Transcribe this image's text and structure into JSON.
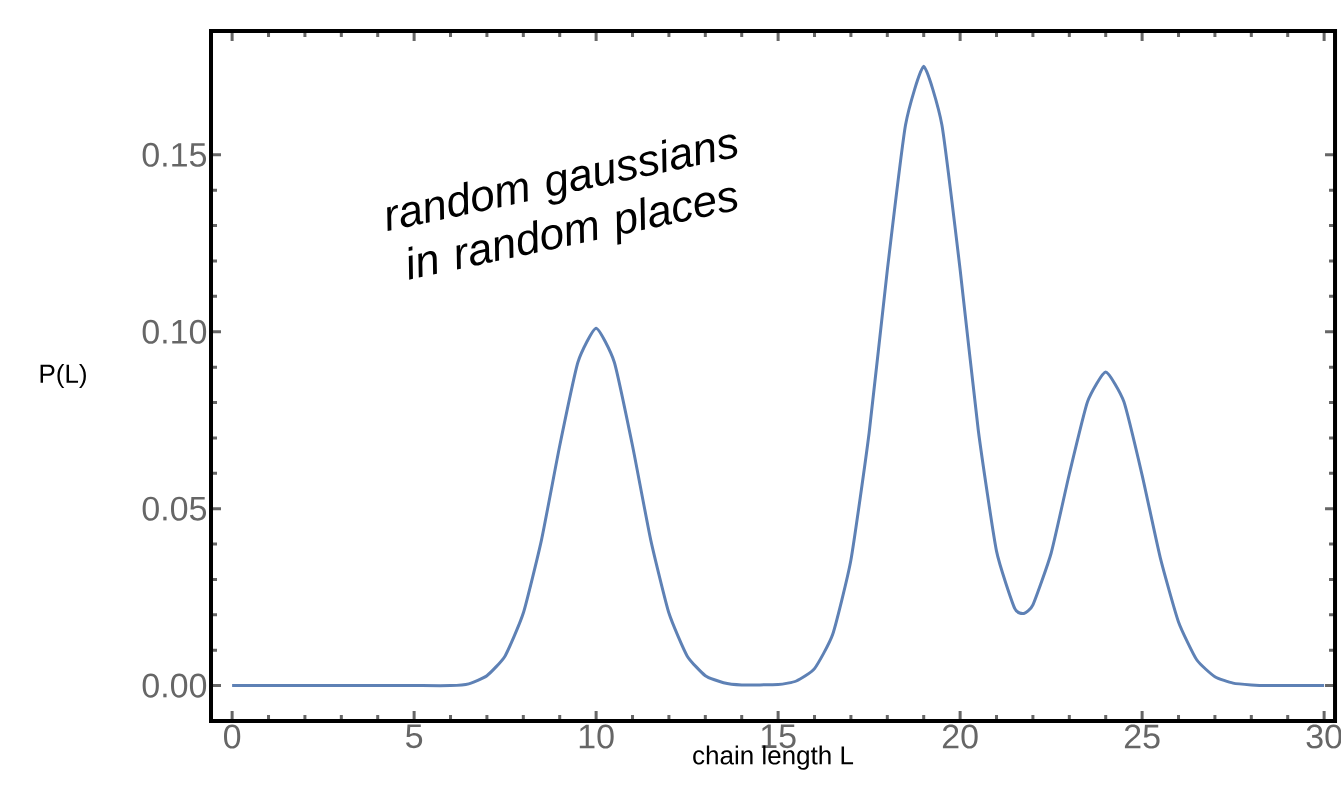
{
  "chart_data": {
    "type": "line",
    "xlabel": "chain length L",
    "ylabel": "P(L)",
    "annotations": [
      "random gaussians in random places"
    ],
    "x": [
      0,
      1,
      2,
      3,
      4,
      5,
      6,
      6.5,
      7,
      7.5,
      8,
      8.5,
      9,
      9.5,
      10,
      10.5,
      11,
      11.5,
      12,
      12.5,
      13,
      13.5,
      14,
      15,
      15.5,
      16,
      16.5,
      17,
      17.5,
      18,
      18.5,
      19,
      19.5,
      20,
      20.5,
      21,
      21.5,
      21.75,
      22,
      22.5,
      23,
      23.5,
      24,
      24.5,
      25,
      25.5,
      26,
      26.5,
      27,
      27.5,
      28,
      28.5,
      29,
      30
    ],
    "series": [
      {
        "color": "#5e81b5",
        "values": [
          0,
          0,
          0,
          0,
          0,
          0,
          0,
          0.0005,
          0.0028,
          0.0084,
          0.0205,
          0.0412,
          0.0678,
          0.0914,
          0.101,
          0.0914,
          0.0678,
          0.0412,
          0.0205,
          0.0084,
          0.0028,
          0.0008,
          0.0002,
          0.0003,
          0.0013,
          0.0048,
          0.0145,
          0.0355,
          0.0714,
          0.1174,
          0.1584,
          0.175,
          0.1584,
          0.1176,
          0.0721,
          0.038,
          0.0218,
          0.0204,
          0.0228,
          0.0374,
          0.0598,
          0.0802,
          0.0886,
          0.0802,
          0.0595,
          0.0361,
          0.018,
          0.0073,
          0.0025,
          0.0007,
          0.0002,
          0,
          0,
          0
        ]
      }
    ],
    "xlim": [
      -0.58,
      30.3
    ],
    "ylim": [
      -0.01,
      0.185
    ],
    "xticks": [
      0,
      5,
      10,
      15,
      20,
      25,
      30
    ],
    "yticks": [
      {
        "value": 0,
        "label": "0.00"
      },
      {
        "value": 0.05,
        "label": "0.05"
      },
      {
        "value": 0.1,
        "label": "0.10"
      },
      {
        "value": 0.15,
        "label": "0.15"
      }
    ],
    "grid": false,
    "marker": "none",
    "line_style": "solid"
  }
}
